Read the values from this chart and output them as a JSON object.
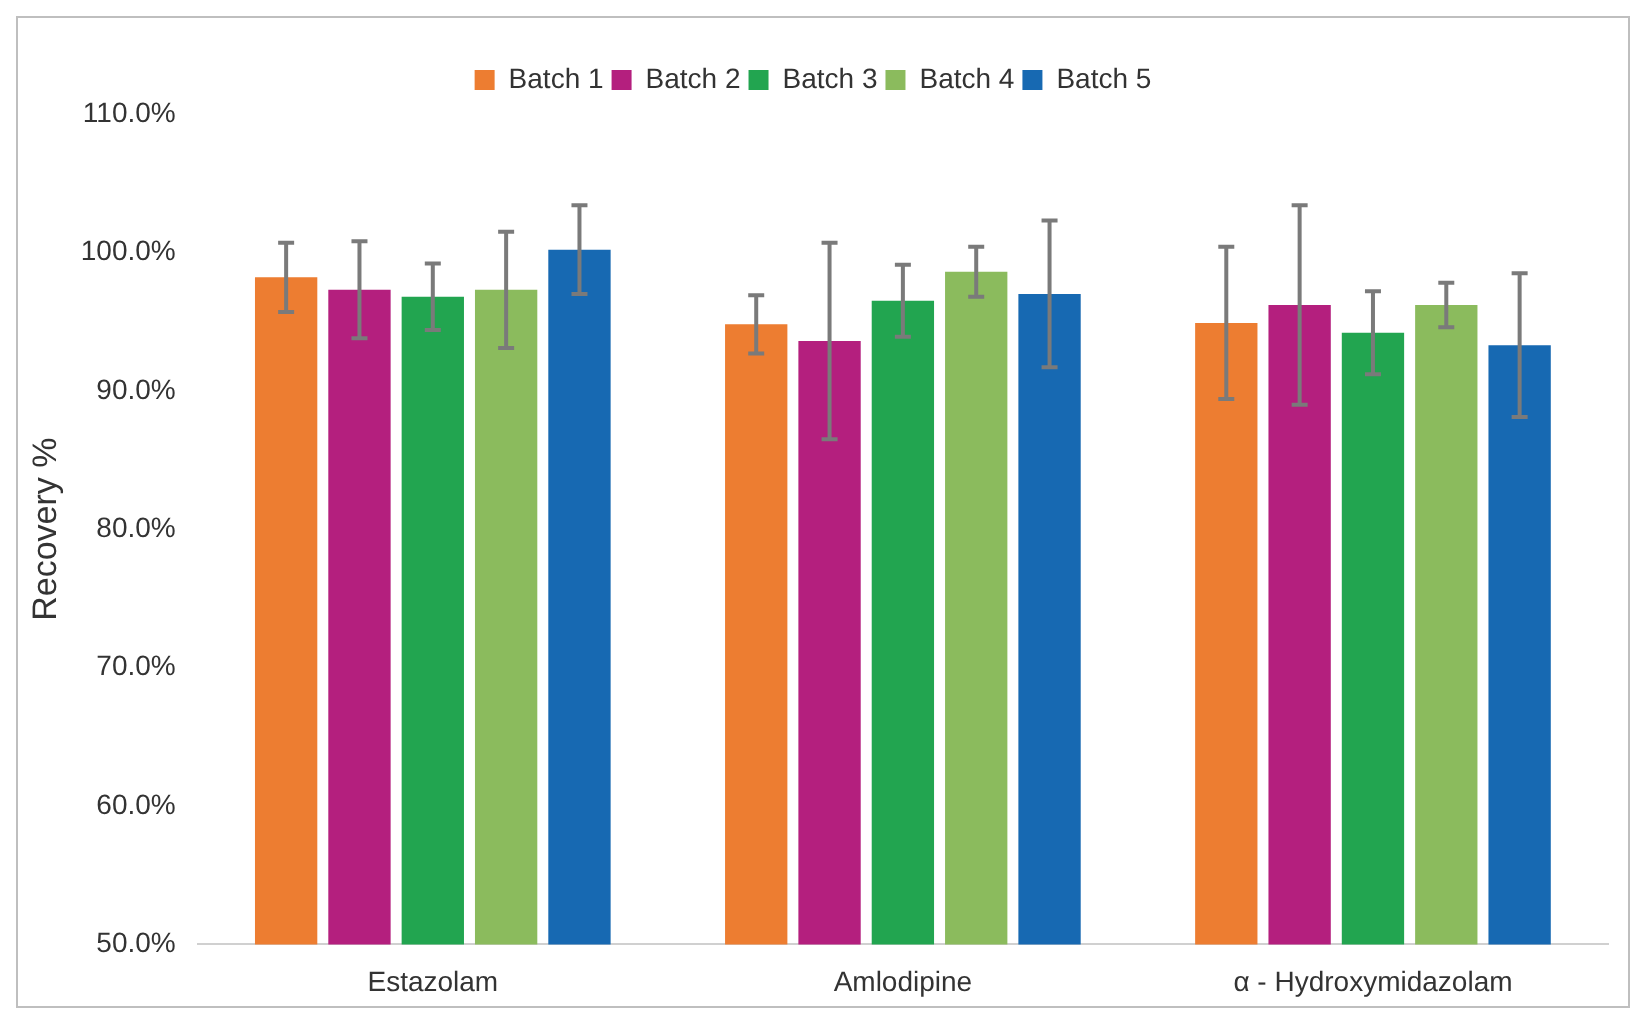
{
  "chart_data": {
    "type": "bar",
    "ylabel": "Recovery %",
    "categories": [
      "Estazolam",
      "Amlodipine",
      "α - Hydroxymidazolam"
    ],
    "series": [
      {
        "name": "Batch 1",
        "color": "#ed7d31",
        "values": [
          98.2,
          94.8,
          94.9
        ],
        "errors": [
          2.5,
          2.1,
          5.5
        ]
      },
      {
        "name": "Batch 2",
        "color": "#b41f7e",
        "values": [
          97.3,
          93.6,
          96.2
        ],
        "errors": [
          3.5,
          7.1,
          7.2
        ]
      },
      {
        "name": "Batch 3",
        "color": "#22a550",
        "values": [
          96.8,
          96.5,
          94.2
        ],
        "errors": [
          2.4,
          2.6,
          3.0
        ]
      },
      {
        "name": "Batch 4",
        "color": "#8bbb5d",
        "values": [
          97.3,
          98.6,
          96.2
        ],
        "errors": [
          4.2,
          1.8,
          1.6
        ]
      },
      {
        "name": "Batch 5",
        "color": "#1769b2",
        "values": [
          100.2,
          97.0,
          93.3
        ],
        "errors": [
          3.2,
          5.3,
          5.2
        ]
      }
    ],
    "ylim": [
      50,
      110
    ],
    "yticks": [
      {
        "value": 50,
        "label": "50.0%"
      },
      {
        "value": 60,
        "label": "60.0%"
      },
      {
        "value": 70,
        "label": "70.0%"
      },
      {
        "value": 80,
        "label": "80.0%"
      },
      {
        "value": 90,
        "label": "90.0%"
      },
      {
        "value": 100,
        "label": "100.0%"
      },
      {
        "value": 110,
        "label": "110.0%"
      }
    ],
    "grid": false,
    "legend": "top"
  }
}
